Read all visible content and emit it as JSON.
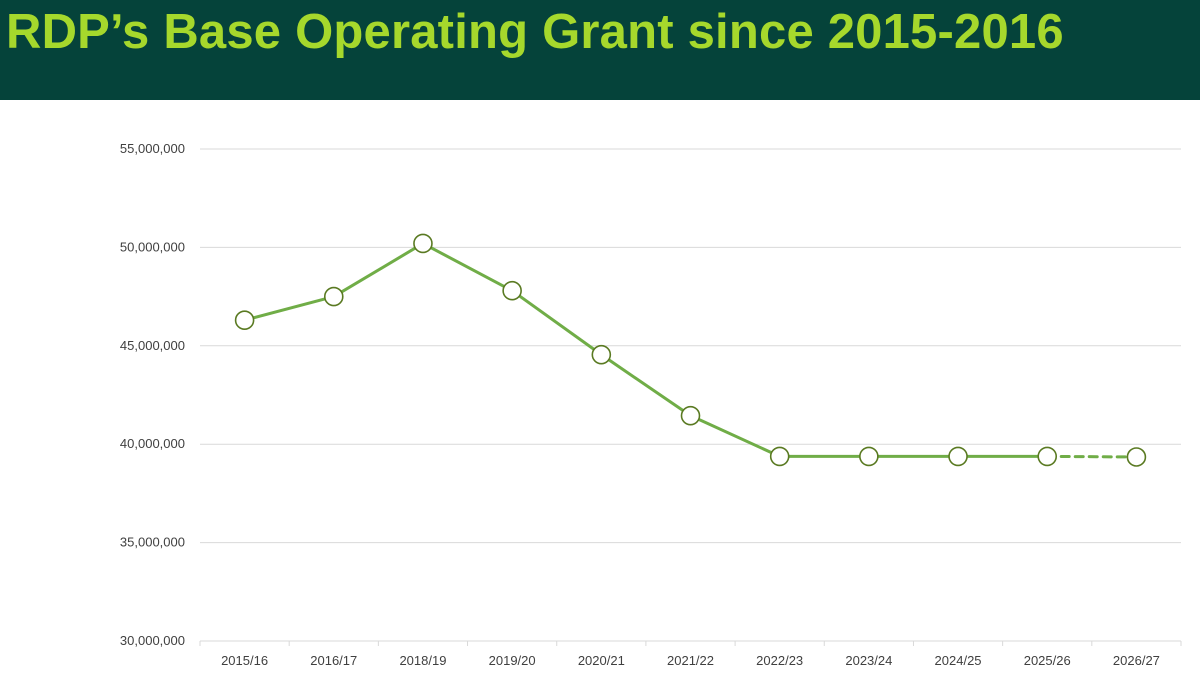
{
  "header": {
    "title": "RDP’s Base Operating Grant since 2015-2016"
  },
  "colors": {
    "header_bg": "#05433a",
    "title": "#a6d82c",
    "line": "#70ad47",
    "marker_edge": "#5a7a22",
    "grid": "#d9d9d9"
  },
  "chart_data": {
    "type": "line",
    "title": "",
    "xlabel": "",
    "ylabel": "",
    "categories": [
      "2015/16",
      "2016/17",
      "2018/19",
      "2019/20",
      "2020/21",
      "2021/22",
      "2022/23",
      "2023/24",
      "2024/25",
      "2025/26",
      "2026/27"
    ],
    "series": [
      {
        "values": [
          46300000,
          47500000,
          50200000,
          47800000,
          44550000,
          41450000,
          39380000,
          39380000,
          39380000,
          39380000,
          39350000
        ],
        "dashed_from_index": 9
      }
    ],
    "ylim": [
      30000000,
      55000000
    ],
    "yticks": [
      30000000,
      35000000,
      40000000,
      45000000,
      50000000,
      55000000
    ],
    "ytick_labels": [
      "30,000,000",
      "35,000,000",
      "40,000,000",
      "45,000,000",
      "50,000,000",
      "55,000,000"
    ],
    "grid": true,
    "legend": "none",
    "markers": "hollow-circle"
  }
}
